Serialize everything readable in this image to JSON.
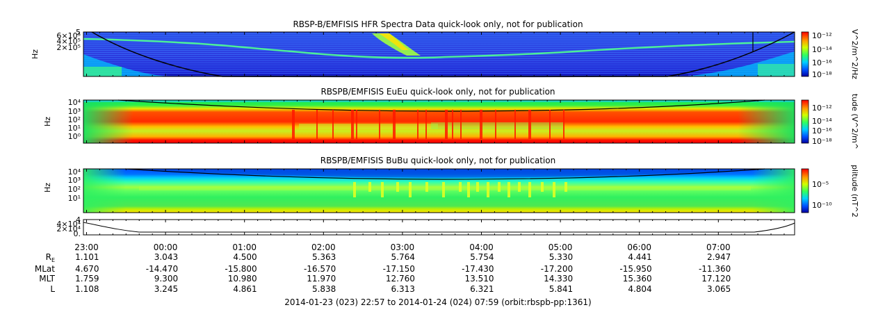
{
  "chart_data": [
    {
      "type": "heatmap",
      "title": "RBSP-B/EMFISIS  HFR Spectra Data quick-look only, not for publication",
      "ylabel": "Hz",
      "ylabel_cbar": "V^2/m^2/Hz",
      "y_ticks": [
        "6×10⁵",
        "4×10⁵",
        "2×10⁵"
      ],
      "y_top_tick": "5",
      "cbar_ticks": [
        "10⁻¹²",
        "10⁻¹⁴",
        "10⁻¹⁶",
        "10⁻¹⁸"
      ]
    },
    {
      "type": "heatmap",
      "title": "RBSPB/EMFISIS  EuEu quick-look only, not for publication",
      "ylabel": "Hz",
      "ylabel_cbar": "tude (V^2/m^",
      "y_ticks": [
        "10⁴",
        "10³",
        "10²",
        "10¹",
        "10⁰"
      ],
      "cbar_ticks": [
        "10⁻¹²",
        "10⁻¹⁴",
        "10⁻¹⁶",
        "10⁻¹⁸"
      ]
    },
    {
      "type": "heatmap",
      "title": "RBSPB/EMFISIS  BuBu quick-look only, not for publication",
      "ylabel": "Hz",
      "ylabel_cbar": "plitude (nT^2",
      "y_ticks": [
        "10⁴",
        "10³",
        "10²",
        "10¹"
      ],
      "cbar_ticks": [
        "10⁻⁵",
        "10⁻¹⁰"
      ]
    },
    {
      "type": "line",
      "y_ticks": [
        "4×10⁴",
        "2×10⁴",
        "0."
      ],
      "y_top_tick": "4"
    }
  ],
  "ephemeris": {
    "row_labels": [
      "R",
      "MLat",
      "MLT",
      "L"
    ],
    "row_label_sub": "E",
    "times": [
      "23:00",
      "00:00",
      "01:00",
      "02:00",
      "03:00",
      "04:00",
      "05:00",
      "06:00",
      "07:00"
    ],
    "R": [
      "1.101",
      "3.043",
      "4.500",
      "5.363",
      "5.764",
      "5.754",
      "5.330",
      "4.441",
      "2.947"
    ],
    "MLat": [
      "4.670",
      "-14.470",
      "-15.800",
      "-16.570",
      "-17.150",
      "-17.430",
      "-17.200",
      "-15.950",
      "-11.360"
    ],
    "MLT": [
      "1.759",
      "9.300",
      "10.980",
      "11.970",
      "12.760",
      "13.510",
      "14.330",
      "15.360",
      "17.120"
    ],
    "L": [
      "1.108",
      "3.245",
      "4.861",
      "5.838",
      "6.313",
      "6.321",
      "5.841",
      "4.804",
      "3.065"
    ]
  },
  "footer": "2014-01-23 (023) 22:57 to 2014-01-24 (024) 07:59 (orbit:rbspb-pp:1361)"
}
